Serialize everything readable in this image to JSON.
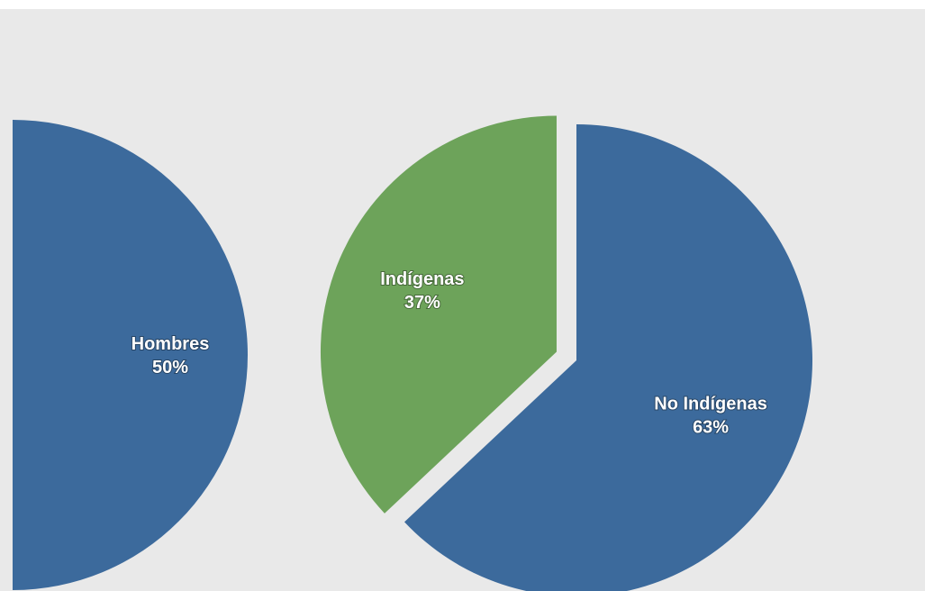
{
  "chart_data": [
    {
      "type": "pie",
      "slices": [
        {
          "label": "Hombres",
          "value": 50,
          "value_label": "50%",
          "color": "#3c6a9c"
        }
      ]
    },
    {
      "type": "pie",
      "slices": [
        {
          "label": "Indígenas",
          "value": 37,
          "value_label": "37%",
          "color": "#6da35a",
          "exploded": true
        },
        {
          "label": "No Indígenas",
          "value": 63,
          "value_label": "63%",
          "color": "#3c6a9c"
        }
      ]
    }
  ]
}
